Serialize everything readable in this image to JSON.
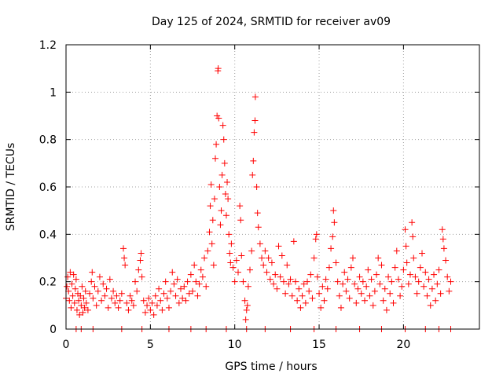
{
  "chart_data": {
    "type": "scatter",
    "title": "Day 125 of 2024, SRMTID for receiver av09",
    "xlabel": "GPS time / hours",
    "ylabel": "SRMTID / TECUs",
    "xlim": [
      0,
      24.5
    ],
    "ylim": [
      0,
      1.2
    ],
    "xticks": [
      0,
      5,
      10,
      15,
      20
    ],
    "xtick_labels": [
      "0",
      "5",
      "10",
      "15",
      "20"
    ],
    "yticks": [
      0,
      0.2,
      0.4,
      0.6,
      0.8,
      1.0,
      1.2
    ],
    "ytick_labels": [
      "0",
      "0.2",
      "0.4",
      "0.6",
      "0.8",
      "1",
      "1.2"
    ],
    "grid": true,
    "marker": "plus",
    "color": "#ff0000",
    "series": [
      {
        "name": "SRMTID",
        "points": [
          [
            0.0,
            0.13
          ],
          [
            0.05,
            0.18
          ],
          [
            0.1,
            0.22
          ],
          [
            0.15,
            0.16
          ],
          [
            0.2,
            0.12
          ],
          [
            0.25,
            0.24
          ],
          [
            0.3,
            0.09
          ],
          [
            0.35,
            0.19
          ],
          [
            0.4,
            0.14
          ],
          [
            0.45,
            0.23
          ],
          [
            0.5,
            0.11
          ],
          [
            0.55,
            0.17
          ],
          [
            0.6,
            0.21
          ],
          [
            0.65,
            0.08
          ],
          [
            0.7,
            0.15
          ],
          [
            0.75,
            0.12
          ],
          [
            0.8,
            0.06
          ],
          [
            0.85,
            0.14
          ],
          [
            0.9,
            0.1
          ],
          [
            0.95,
            0.18
          ],
          [
            1.0,
            0.07
          ],
          [
            1.05,
            0.13
          ],
          [
            1.1,
            0.09
          ],
          [
            1.15,
            0.16
          ],
          [
            1.2,
            0.11
          ],
          [
            1.3,
            0.08
          ],
          [
            1.4,
            0.15
          ],
          [
            1.5,
            0.2
          ],
          [
            1.55,
            0.24
          ],
          [
            1.6,
            0.13
          ],
          [
            1.7,
            0.18
          ],
          [
            1.8,
            0.1
          ],
          [
            1.9,
            0.16
          ],
          [
            2.0,
            0.22
          ],
          [
            2.1,
            0.12
          ],
          [
            2.2,
            0.19
          ],
          [
            2.3,
            0.14
          ],
          [
            2.4,
            0.17
          ],
          [
            2.5,
            0.09
          ],
          [
            2.6,
            0.21
          ],
          [
            2.7,
            0.13
          ],
          [
            2.8,
            0.16
          ],
          [
            2.9,
            0.11
          ],
          [
            3.0,
            0.14
          ],
          [
            3.1,
            0.09
          ],
          [
            3.2,
            0.12
          ],
          [
            3.3,
            0.15
          ],
          [
            3.4,
            0.34
          ],
          [
            3.45,
            0.3
          ],
          [
            3.5,
            0.27
          ],
          [
            3.6,
            0.11
          ],
          [
            3.7,
            0.08
          ],
          [
            3.8,
            0.14
          ],
          [
            3.9,
            0.12
          ],
          [
            4.0,
            0.1
          ],
          [
            4.1,
            0.2
          ],
          [
            4.2,
            0.16
          ],
          [
            4.3,
            0.25
          ],
          [
            4.4,
            0.29
          ],
          [
            4.45,
            0.32
          ],
          [
            4.5,
            0.22
          ],
          [
            4.6,
            0.12
          ],
          [
            4.7,
            0.07
          ],
          [
            4.8,
            0.1
          ],
          [
            4.9,
            0.13
          ],
          [
            5.0,
            0.08
          ],
          [
            5.1,
            0.11
          ],
          [
            5.2,
            0.06
          ],
          [
            5.3,
            0.14
          ],
          [
            5.4,
            0.1
          ],
          [
            5.5,
            0.17
          ],
          [
            5.6,
            0.12
          ],
          [
            5.7,
            0.08
          ],
          [
            5.8,
            0.15
          ],
          [
            5.9,
            0.2
          ],
          [
            6.0,
            0.13
          ],
          [
            6.1,
            0.09
          ],
          [
            6.2,
            0.16
          ],
          [
            6.3,
            0.24
          ],
          [
            6.4,
            0.19
          ],
          [
            6.5,
            0.14
          ],
          [
            6.6,
            0.21
          ],
          [
            6.7,
            0.11
          ],
          [
            6.8,
            0.17
          ],
          [
            6.9,
            0.13
          ],
          [
            7.0,
            0.18
          ],
          [
            7.1,
            0.12
          ],
          [
            7.2,
            0.2
          ],
          [
            7.3,
            0.15
          ],
          [
            7.4,
            0.23
          ],
          [
            7.5,
            0.16
          ],
          [
            7.6,
            0.27
          ],
          [
            7.7,
            0.2
          ],
          [
            7.8,
            0.14
          ],
          [
            7.9,
            0.19
          ],
          [
            8.0,
            0.25
          ],
          [
            8.1,
            0.22
          ],
          [
            8.2,
            0.3
          ],
          [
            8.3,
            0.18
          ],
          [
            8.4,
            0.33
          ],
          [
            8.5,
            0.41
          ],
          [
            8.55,
            0.52
          ],
          [
            8.6,
            0.61
          ],
          [
            8.65,
            0.36
          ],
          [
            8.7,
            0.46
          ],
          [
            8.75,
            0.27
          ],
          [
            8.8,
            0.55
          ],
          [
            8.85,
            0.72
          ],
          [
            8.9,
            0.78
          ],
          [
            8.95,
            0.9
          ],
          [
            9.0,
            1.09
          ],
          [
            9.02,
            1.1
          ],
          [
            9.05,
            0.89
          ],
          [
            9.1,
            0.6
          ],
          [
            9.15,
            0.44
          ],
          [
            9.2,
            0.5
          ],
          [
            9.25,
            0.65
          ],
          [
            9.3,
            0.86
          ],
          [
            9.35,
            0.8
          ],
          [
            9.4,
            0.7
          ],
          [
            9.45,
            0.57
          ],
          [
            9.5,
            0.48
          ],
          [
            9.55,
            0.62
          ],
          [
            9.6,
            0.55
          ],
          [
            9.65,
            0.4
          ],
          [
            9.7,
            0.32
          ],
          [
            9.75,
            0.28
          ],
          [
            9.8,
            0.36
          ],
          [
            9.9,
            0.26
          ],
          [
            10.0,
            0.2
          ],
          [
            10.1,
            0.29
          ],
          [
            10.2,
            0.24
          ],
          [
            10.3,
            0.52
          ],
          [
            10.35,
            0.46
          ],
          [
            10.4,
            0.31
          ],
          [
            10.5,
            0.2
          ],
          [
            10.6,
            0.12
          ],
          [
            10.65,
            0.04
          ],
          [
            10.7,
            0.08
          ],
          [
            10.75,
            0.1
          ],
          [
            10.8,
            0.18
          ],
          [
            10.9,
            0.25
          ],
          [
            11.0,
            0.33
          ],
          [
            11.05,
            0.65
          ],
          [
            11.1,
            0.71
          ],
          [
            11.15,
            0.83
          ],
          [
            11.2,
            0.88
          ],
          [
            11.22,
            0.98
          ],
          [
            11.3,
            0.6
          ],
          [
            11.35,
            0.49
          ],
          [
            11.4,
            0.43
          ],
          [
            11.5,
            0.36
          ],
          [
            11.6,
            0.3
          ],
          [
            11.7,
            0.27
          ],
          [
            11.8,
            0.33
          ],
          [
            11.9,
            0.24
          ],
          [
            12.0,
            0.3
          ],
          [
            12.1,
            0.21
          ],
          [
            12.2,
            0.28
          ],
          [
            12.3,
            0.19
          ],
          [
            12.4,
            0.23
          ],
          [
            12.5,
            0.17
          ],
          [
            12.6,
            0.35
          ],
          [
            12.7,
            0.22
          ],
          [
            12.8,
            0.31
          ],
          [
            12.9,
            0.2
          ],
          [
            13.0,
            0.15
          ],
          [
            13.1,
            0.27
          ],
          [
            13.2,
            0.19
          ],
          [
            13.3,
            0.21
          ],
          [
            13.4,
            0.14
          ],
          [
            13.5,
            0.37
          ],
          [
            13.6,
            0.2
          ],
          [
            13.7,
            0.12
          ],
          [
            13.8,
            0.17
          ],
          [
            13.9,
            0.09
          ],
          [
            14.0,
            0.14
          ],
          [
            14.1,
            0.19
          ],
          [
            14.2,
            0.11
          ],
          [
            14.3,
            0.2
          ],
          [
            14.4,
            0.16
          ],
          [
            14.5,
            0.23
          ],
          [
            14.6,
            0.13
          ],
          [
            14.7,
            0.3
          ],
          [
            14.8,
            0.38
          ],
          [
            14.85,
            0.4
          ],
          [
            14.9,
            0.22
          ],
          [
            15.0,
            0.15
          ],
          [
            15.1,
            0.09
          ],
          [
            15.2,
            0.18
          ],
          [
            15.3,
            0.12
          ],
          [
            15.4,
            0.21
          ],
          [
            15.5,
            0.17
          ],
          [
            15.6,
            0.26
          ],
          [
            15.7,
            0.34
          ],
          [
            15.8,
            0.39
          ],
          [
            15.85,
            0.5
          ],
          [
            15.9,
            0.45
          ],
          [
            16.0,
            0.28
          ],
          [
            16.1,
            0.2
          ],
          [
            16.2,
            0.14
          ],
          [
            16.3,
            0.09
          ],
          [
            16.4,
            0.19
          ],
          [
            16.5,
            0.24
          ],
          [
            16.6,
            0.16
          ],
          [
            16.7,
            0.21
          ],
          [
            16.8,
            0.13
          ],
          [
            16.9,
            0.26
          ],
          [
            17.0,
            0.3
          ],
          [
            17.1,
            0.19
          ],
          [
            17.2,
            0.11
          ],
          [
            17.3,
            0.17
          ],
          [
            17.4,
            0.22
          ],
          [
            17.5,
            0.15
          ],
          [
            17.6,
            0.2
          ],
          [
            17.7,
            0.12
          ],
          [
            17.8,
            0.18
          ],
          [
            17.9,
            0.25
          ],
          [
            18.0,
            0.14
          ],
          [
            18.1,
            0.21
          ],
          [
            18.2,
            0.1
          ],
          [
            18.3,
            0.16
          ],
          [
            18.4,
            0.23
          ],
          [
            18.5,
            0.3
          ],
          [
            18.6,
            0.19
          ],
          [
            18.7,
            0.27
          ],
          [
            18.8,
            0.12
          ],
          [
            18.9,
            0.17
          ],
          [
            19.0,
            0.08
          ],
          [
            19.1,
            0.22
          ],
          [
            19.2,
            0.15
          ],
          [
            19.3,
            0.2
          ],
          [
            19.4,
            0.11
          ],
          [
            19.5,
            0.26
          ],
          [
            19.6,
            0.33
          ],
          [
            19.7,
            0.21
          ],
          [
            19.8,
            0.14
          ],
          [
            19.9,
            0.18
          ],
          [
            20.0,
            0.25
          ],
          [
            20.1,
            0.42
          ],
          [
            20.15,
            0.35
          ],
          [
            20.2,
            0.28
          ],
          [
            20.3,
            0.19
          ],
          [
            20.4,
            0.23
          ],
          [
            20.5,
            0.45
          ],
          [
            20.55,
            0.39
          ],
          [
            20.6,
            0.3
          ],
          [
            20.7,
            0.22
          ],
          [
            20.8,
            0.15
          ],
          [
            20.9,
            0.2
          ],
          [
            21.0,
            0.26
          ],
          [
            21.1,
            0.32
          ],
          [
            21.2,
            0.18
          ],
          [
            21.3,
            0.24
          ],
          [
            21.4,
            0.14
          ],
          [
            21.5,
            0.21
          ],
          [
            21.6,
            0.1
          ],
          [
            21.7,
            0.17
          ],
          [
            21.8,
            0.23
          ],
          [
            21.9,
            0.12
          ],
          [
            22.0,
            0.19
          ],
          [
            22.1,
            0.25
          ],
          [
            22.2,
            0.15
          ],
          [
            22.3,
            0.42
          ],
          [
            22.35,
            0.38
          ],
          [
            22.4,
            0.34
          ],
          [
            22.5,
            0.29
          ],
          [
            22.6,
            0.22
          ],
          [
            22.7,
            0.16
          ],
          [
            22.8,
            0.2
          ]
        ]
      },
      {
        "name": "SRMTID (zero values)",
        "points": [
          [
            0.6,
            0.0
          ],
          [
            0.9,
            0.0
          ],
          [
            1.6,
            0.0
          ],
          [
            3.3,
            0.0
          ],
          [
            4.5,
            0.0
          ],
          [
            6.1,
            0.0
          ],
          [
            7.4,
            0.0
          ],
          [
            8.3,
            0.0
          ],
          [
            9.5,
            0.0
          ],
          [
            10.7,
            0.0
          ],
          [
            11.8,
            0.0
          ],
          [
            13.3,
            0.0
          ],
          [
            14.7,
            0.0
          ],
          [
            16.0,
            0.0
          ],
          [
            17.4,
            0.0
          ],
          [
            18.7,
            0.0
          ],
          [
            20.1,
            0.0
          ],
          [
            21.3,
            0.0
          ],
          [
            22.1,
            0.0
          ],
          [
            22.8,
            0.0
          ]
        ]
      }
    ]
  }
}
